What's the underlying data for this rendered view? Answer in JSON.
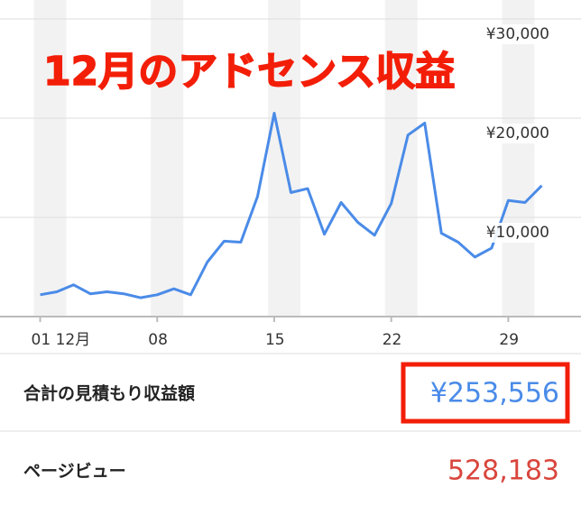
{
  "chart_data": {
    "type": "line",
    "title": "12月のアドセンス収益",
    "x": [
      1,
      2,
      3,
      4,
      5,
      6,
      7,
      8,
      9,
      10,
      11,
      12,
      13,
      14,
      15,
      16,
      17,
      18,
      19,
      20,
      21,
      22,
      23,
      24,
      25,
      26,
      27,
      28,
      29,
      30,
      31
    ],
    "series": [
      {
        "name": "収益",
        "color": "#4a8be8",
        "values": [
          2200,
          2500,
          3200,
          2300,
          2500,
          2300,
          1900,
          2200,
          2800,
          2200,
          5500,
          7600,
          7500,
          12100,
          20500,
          12500,
          12900,
          8300,
          11500,
          9500,
          8200,
          11400,
          18300,
          19500,
          8400,
          7500,
          6000,
          6900,
          11700,
          11500,
          13200
        ]
      }
    ],
    "xlim": [
      0,
      32
    ],
    "xticks": [
      {
        "value": 1,
        "label": "01 12月"
      },
      {
        "value": 8,
        "label": "08"
      },
      15,
      22,
      29
    ],
    "ylim": [
      0,
      30000
    ],
    "yticks": [
      {
        "value": 10000,
        "label": "¥10,000"
      },
      {
        "value": 20000,
        "label": "¥20,000"
      },
      {
        "value": 30000,
        "label": "¥30,000"
      }
    ],
    "grid": true
  },
  "summary": [
    {
      "label": "合計の見積もり収益額",
      "value": "¥253,556",
      "color": "#4a8be8"
    },
    {
      "label": "ページビュー",
      "value": "528,183",
      "color": "#d9463d"
    }
  ]
}
